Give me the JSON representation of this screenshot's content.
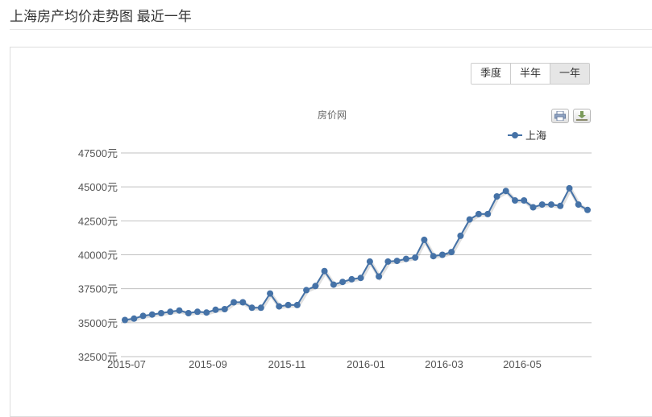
{
  "page": {
    "title": "上海房产均价走势图 最近一年"
  },
  "range_buttons": [
    {
      "label": "季度",
      "active": false
    },
    {
      "label": "半年",
      "active": false
    },
    {
      "label": "一年",
      "active": true
    }
  ],
  "toolbar": {
    "print_icon": "printer-icon",
    "export_icon": "download-icon"
  },
  "colors": {
    "series": "#4572a7",
    "grid": "#c0c0c0",
    "active_button": "#e6e6e6"
  },
  "chart_data": {
    "type": "line",
    "title": "房价网",
    "legend_position": "top-right",
    "grid": true,
    "ylim": [
      32500,
      47500
    ],
    "y_ticks": [
      "32500元",
      "35000元",
      "37500元",
      "40000元",
      "42500元",
      "45000元",
      "47500元"
    ],
    "x_tick_labels": [
      "2015-07",
      "2015-09",
      "2015-11",
      "2016-01",
      "2016-03",
      "2016-05"
    ],
    "series": [
      {
        "name": "上海",
        "values": [
          35200,
          35300,
          35500,
          35600,
          35700,
          35800,
          35900,
          35700,
          35800,
          35750,
          35950,
          36000,
          36500,
          36500,
          36100,
          36100,
          37150,
          36200,
          36300,
          36300,
          37400,
          37700,
          38800,
          37800,
          38000,
          38200,
          38300,
          39500,
          38400,
          39500,
          39550,
          39700,
          39800,
          41100,
          39900,
          40000,
          40200,
          41400,
          42600,
          43000,
          43000,
          44300,
          44700,
          44000,
          44000,
          43500,
          43700,
          43700,
          43600,
          44900,
          43700,
          43300
        ]
      }
    ]
  }
}
